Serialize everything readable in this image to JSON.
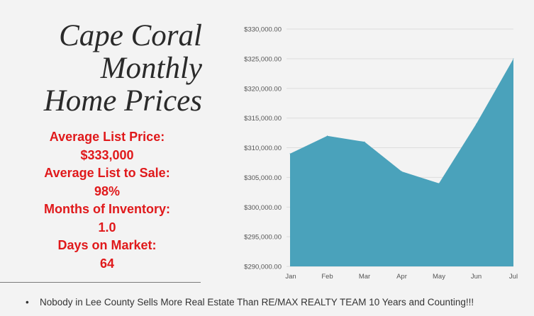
{
  "title_lines": [
    "Cape Coral",
    "Monthly",
    "Home Prices"
  ],
  "stats": {
    "avg_list_price_label": "Average List Price:",
    "avg_list_price_value": "$333,000",
    "avg_list_to_sale_label": "Average List to Sale:",
    "avg_list_to_sale_value": "98%",
    "months_inventory_label": "Months of Inventory:",
    "months_inventory_value": "1.0",
    "days_on_market_label": "Days on Market:",
    "days_on_market_value": "64"
  },
  "footer": {
    "bullet": "•",
    "text": "Nobody in Lee County Sells More Real Estate Than RE/MAX REALTY  TEAM  10 Years and Counting!!!"
  },
  "colors": {
    "area": "#4aa2bb",
    "stats_text": "#e0191b",
    "gridline": "#dddddd"
  },
  "chart_data": {
    "type": "area",
    "categories": [
      "Jan",
      "Feb",
      "Mar",
      "Apr",
      "May",
      "Jun",
      "Jul"
    ],
    "values": [
      309000,
      312000,
      311000,
      306000,
      304000,
      314000,
      325000
    ],
    "ylim": [
      290000,
      330000
    ],
    "yticks": [
      290000,
      295000,
      300000,
      305000,
      310000,
      315000,
      320000,
      325000,
      330000
    ],
    "ytick_labels": [
      "$290,000.00",
      "$295,000.00",
      "$300,000.00",
      "$305,000.00",
      "$310,000.00",
      "$315,000.00",
      "$320,000.00",
      "$325,000.00",
      "$330,000.00"
    ],
    "grid": true,
    "title": "",
    "xlabel": "",
    "ylabel": ""
  }
}
